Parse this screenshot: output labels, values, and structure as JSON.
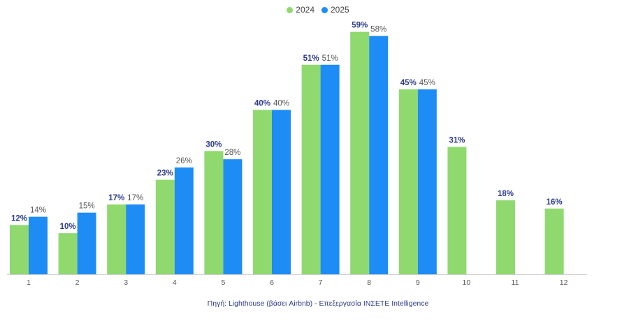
{
  "chart_data": {
    "type": "bar",
    "categories": [
      "1",
      "2",
      "3",
      "4",
      "5",
      "6",
      "7",
      "8",
      "9",
      "10",
      "11",
      "12"
    ],
    "series": [
      {
        "name": "2024",
        "color": "#8fd96f",
        "values": [
          12,
          10,
          17,
          23,
          30,
          40,
          51,
          59,
          45,
          31,
          18,
          16
        ]
      },
      {
        "name": "2025",
        "color": "#1e8cf5",
        "values": [
          14,
          15,
          17,
          26,
          28,
          40,
          51,
          58,
          45,
          null,
          null,
          null
        ]
      }
    ],
    "ylim": [
      0,
      62
    ],
    "grid": false,
    "legend_position": "top-center",
    "value_suffix": "%",
    "label_colors": {
      "2024": "#2b3a8f",
      "2025": "#555555"
    },
    "source": "Πηγή: Lighthouse (βάσει Airbnb) - Επεξεργασία INΣETE Intelligence"
  }
}
